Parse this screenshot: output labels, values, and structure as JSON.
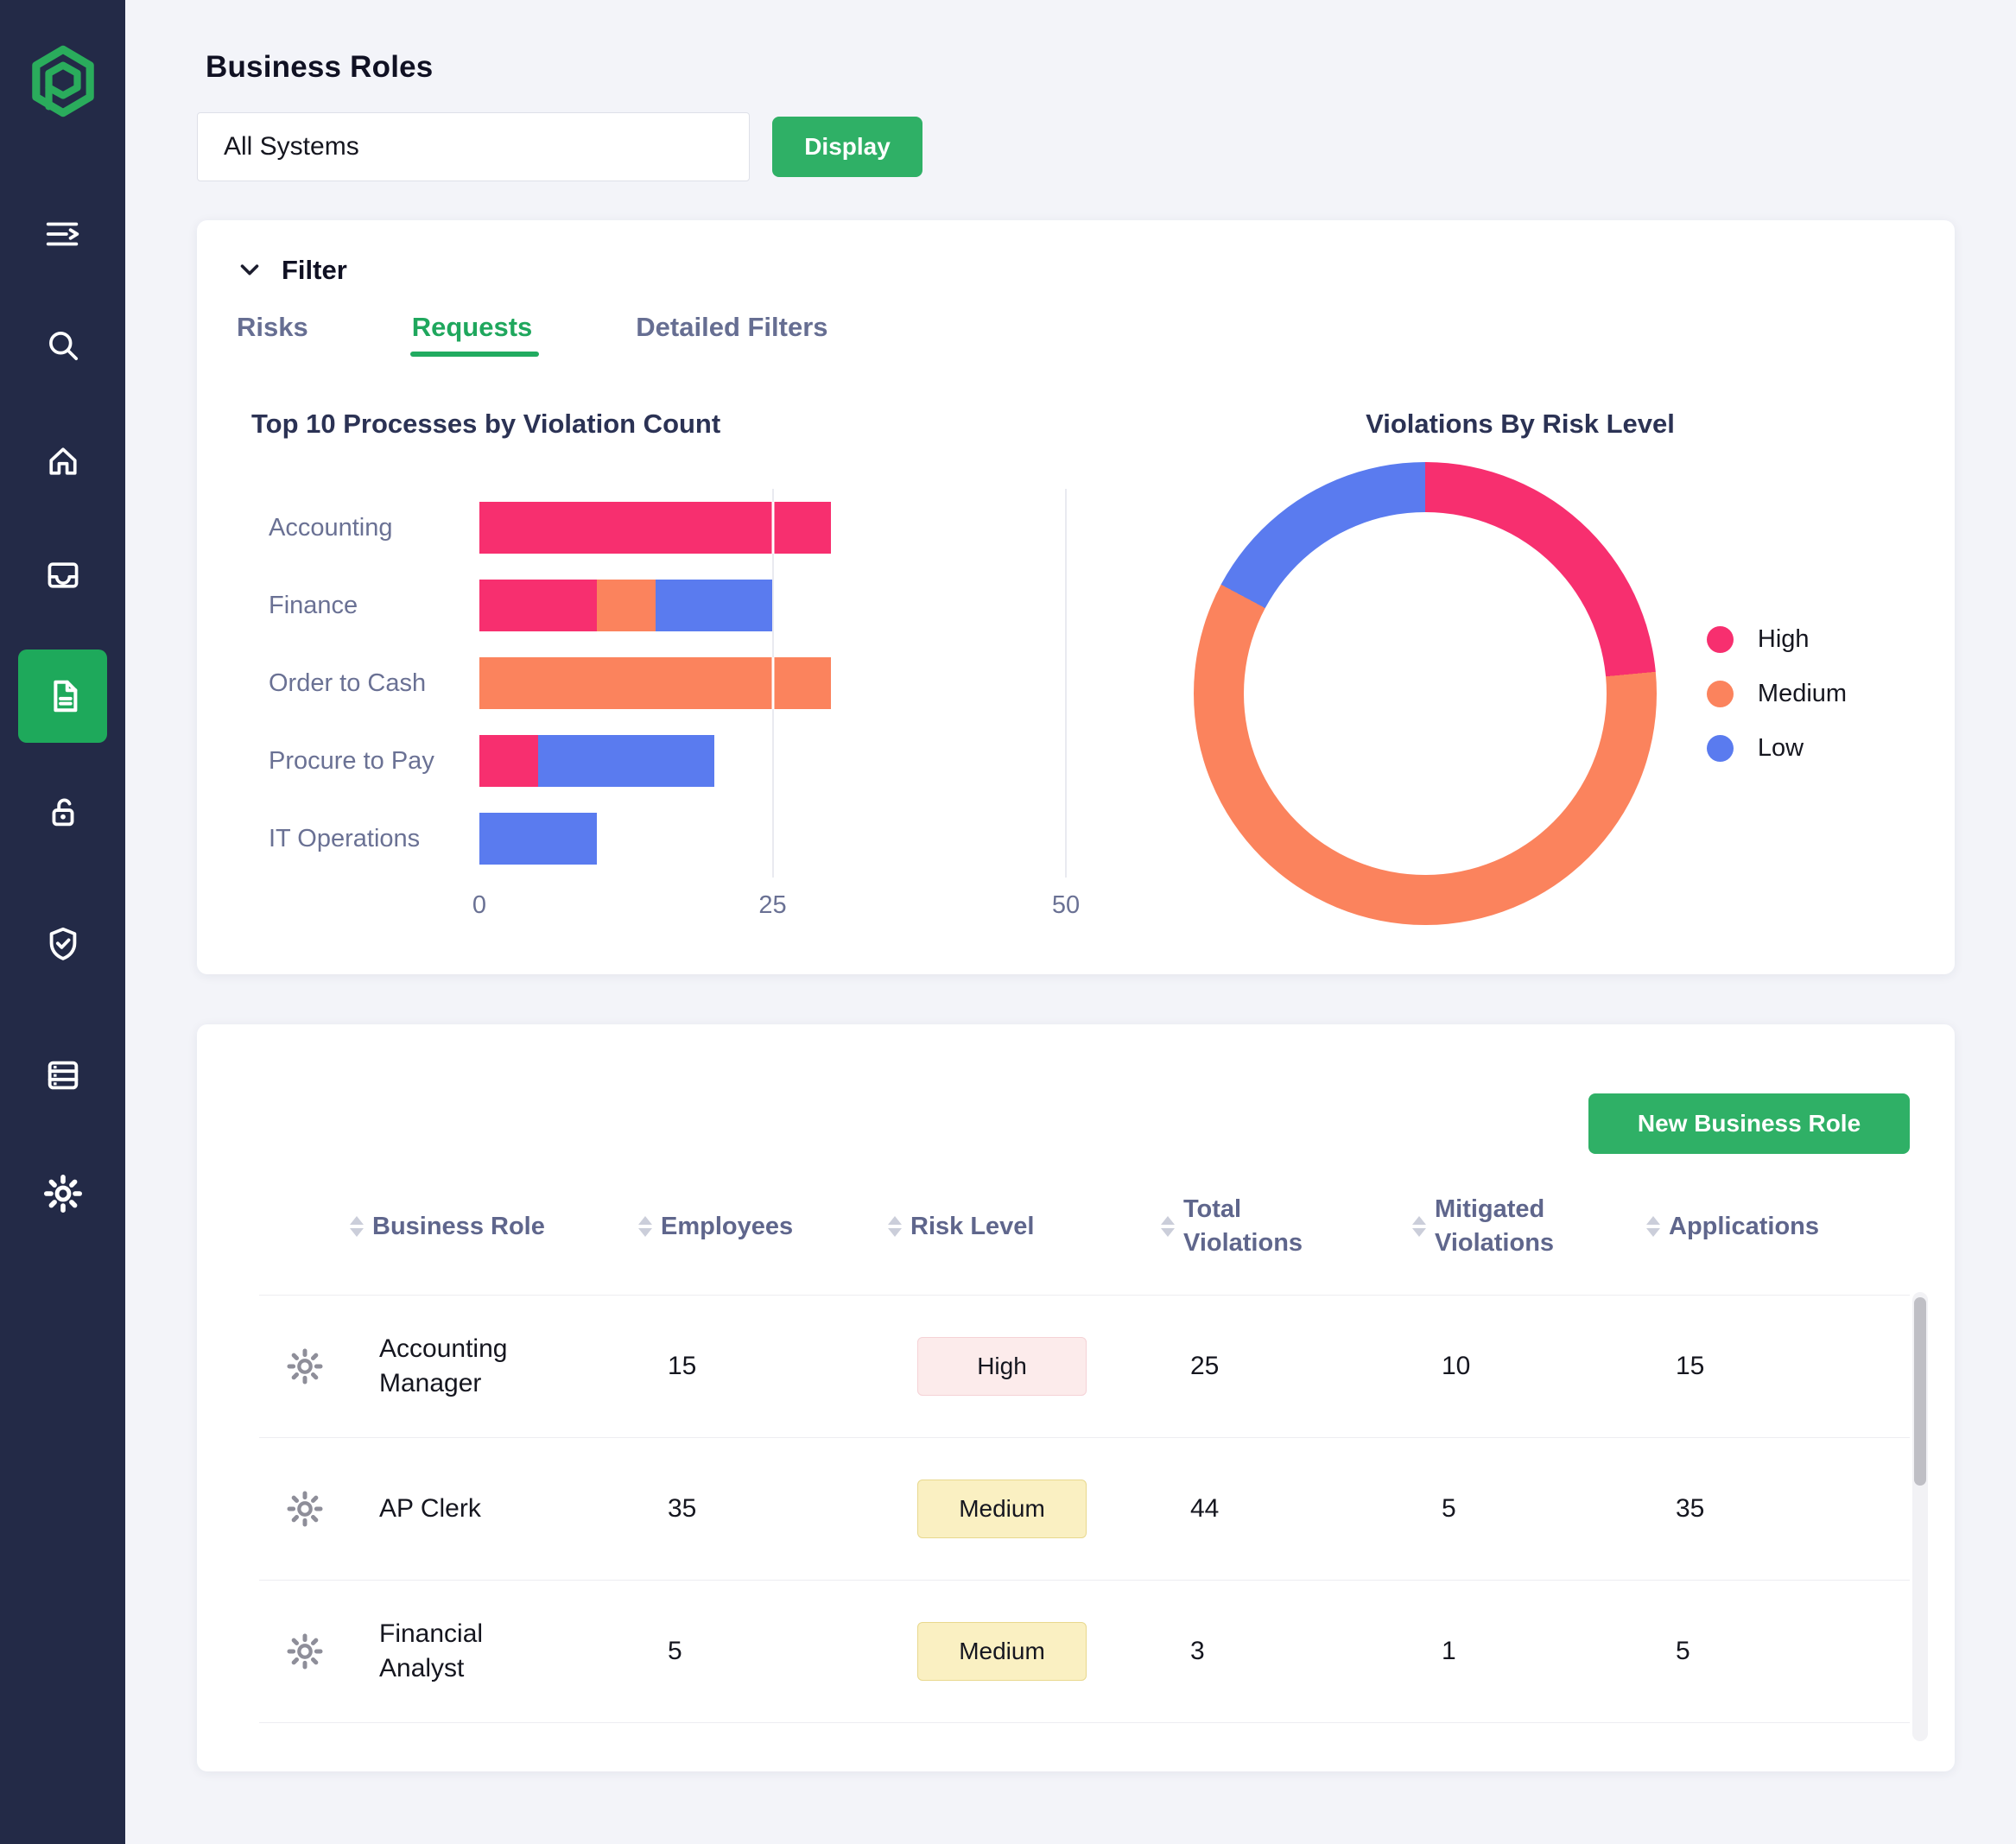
{
  "colors": {
    "accent_green": "#2FB066",
    "active_tab_green": "#1FA75D",
    "sidebar_bg": "#232A47",
    "sidebar_active_tile": "#1EA95B",
    "high": "#F72F6F",
    "medium": "#FB835D",
    "low": "#5A7BEF",
    "badge_high_bg": "#FCEBEB",
    "badge_medium_bg": "#FAF0C2"
  },
  "sidebar": {
    "icons": [
      "logo-hexagon",
      "collapse-sidebar",
      "search",
      "home",
      "inbox",
      "documents-active",
      "lock-open",
      "shield-check",
      "data-table",
      "settings-gear"
    ]
  },
  "header": {
    "title": "Business Roles",
    "system_select_value": "All Systems",
    "display_button_label": "Display"
  },
  "filter_panel": {
    "label": "Filter",
    "tabs": [
      {
        "label": "Risks",
        "active": false
      },
      {
        "label": "Requests",
        "active": true
      },
      {
        "label": "Detailed Filters",
        "active": false
      }
    ]
  },
  "chart_data": [
    {
      "type": "bar",
      "orientation": "horizontal",
      "title": "Top 10 Processes by Violation Count",
      "categories": [
        "Accounting",
        "Finance",
        "Order to Cash",
        "Procure to Pay",
        "IT Operations"
      ],
      "series": [
        {
          "name": "High",
          "color": "#F72F6F",
          "values": [
            30,
            10,
            0,
            5,
            0
          ]
        },
        {
          "name": "Medium",
          "color": "#FB835D",
          "values": [
            0,
            5,
            30,
            0,
            0
          ]
        },
        {
          "name": "Low",
          "color": "#5A7BEF",
          "values": [
            0,
            10,
            0,
            15,
            10
          ]
        }
      ],
      "xlabel": "",
      "ylabel": "",
      "xlim": [
        0,
        50
      ],
      "xticks": [
        0,
        25,
        50
      ],
      "gridlines": [
        25,
        50
      ],
      "legend_position": "none"
    },
    {
      "type": "pie",
      "donut": true,
      "title": "Violations By Risk Level",
      "labels": [
        "High",
        "Medium",
        "Low"
      ],
      "values_percent": [
        23.5,
        59.3,
        17.2
      ],
      "colors": [
        "#F72F6F",
        "#FB835D",
        "#5A7BEF"
      ],
      "legend_position": "right"
    }
  ],
  "roles_table": {
    "new_role_button_label": "New Business Role",
    "columns": [
      "Business Role",
      "Employees",
      "Risk Level",
      "Total Violations",
      "Mitigated Violations",
      "Applications"
    ],
    "rows": [
      {
        "role": "Accounting Manager",
        "employees": "15",
        "risk": "High",
        "total": "25",
        "mitigated": "10",
        "applications": "15"
      },
      {
        "role": "AP Clerk",
        "employees": "35",
        "risk": "Medium",
        "total": "44",
        "mitigated": "5",
        "applications": "35"
      },
      {
        "role": "Financial Analyst",
        "employees": "5",
        "risk": "Medium",
        "total": "3",
        "mitigated": "1",
        "applications": "5"
      }
    ]
  }
}
